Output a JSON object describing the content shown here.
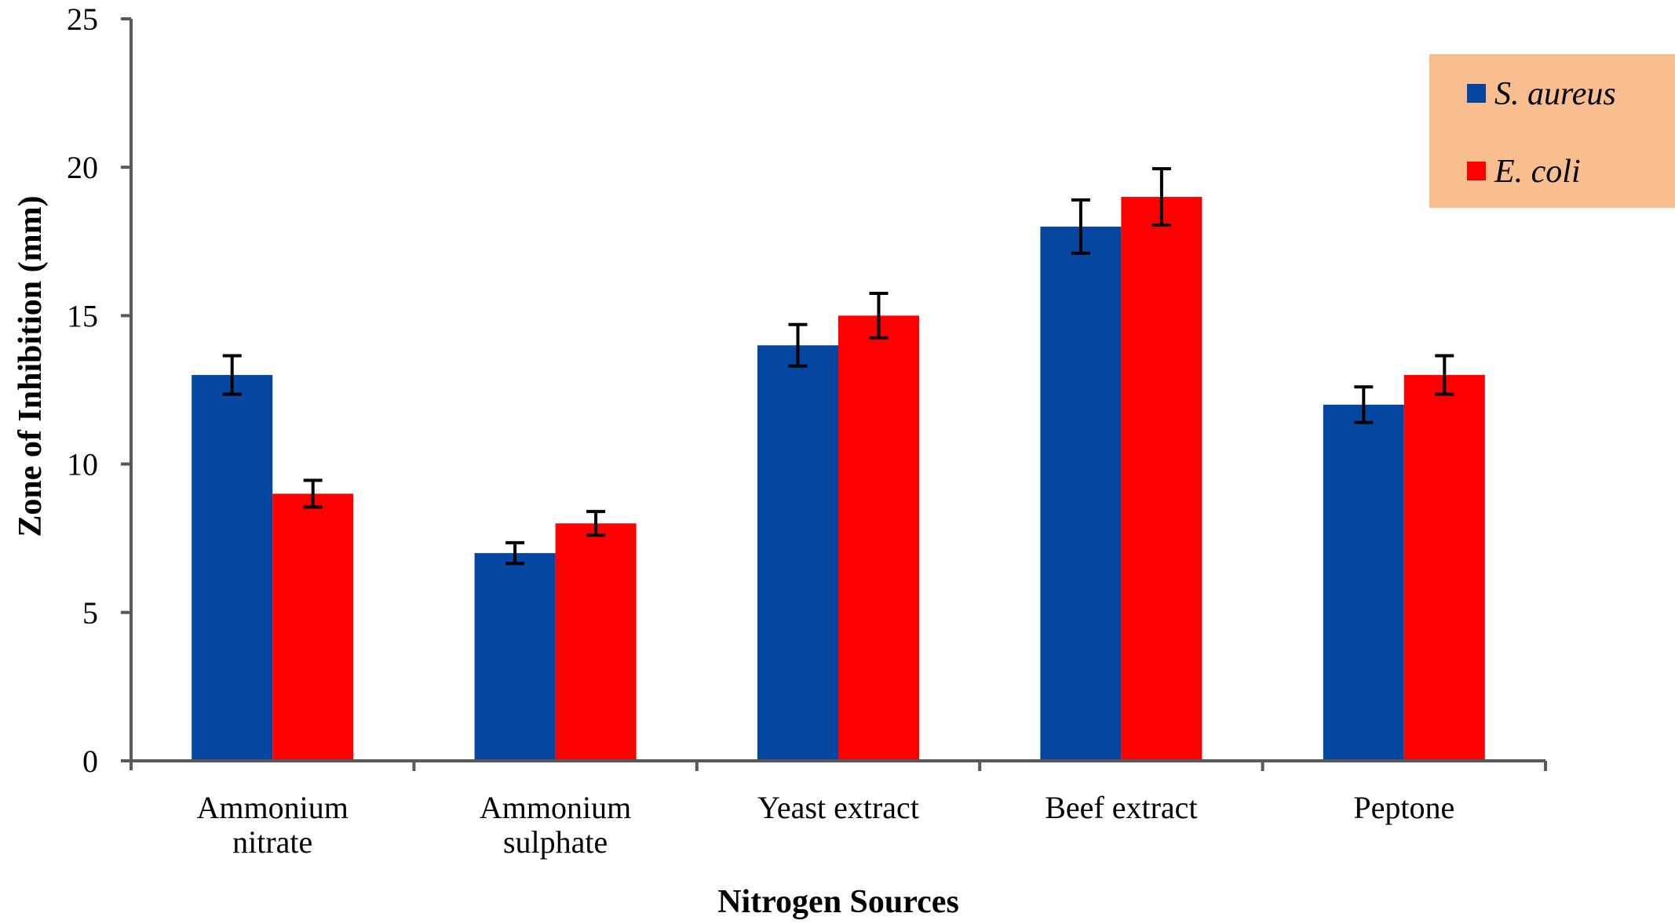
{
  "chart_data": {
    "type": "bar",
    "title": "",
    "xlabel": "Nitrogen Sources",
    "ylabel": "Zone of Inhibition (mm)",
    "ylim": [
      0,
      25
    ],
    "yticks": [
      0,
      5,
      10,
      15,
      20,
      25
    ],
    "grid": false,
    "legend_position": "top-right",
    "categories": [
      [
        "Ammonium",
        "nitrate"
      ],
      [
        "Ammonium",
        "sulphate"
      ],
      [
        "Yeast extract"
      ],
      [
        "Beef extract"
      ],
      [
        "Peptone"
      ]
    ],
    "series": [
      {
        "name": "S. aureus",
        "color": "#0446A0",
        "values": [
          13,
          7,
          14,
          18,
          12
        ],
        "errors": [
          0.65,
          0.35,
          0.7,
          0.9,
          0.6
        ]
      },
      {
        "name": "E. coli",
        "color": "#FF0000",
        "values": [
          9,
          8,
          15,
          19,
          13
        ],
        "errors": [
          0.45,
          0.4,
          0.75,
          0.95,
          0.65
        ]
      }
    ],
    "legend_background": "#F8BE90",
    "axis_color": "#595959",
    "error_bar_color": "#000000"
  }
}
